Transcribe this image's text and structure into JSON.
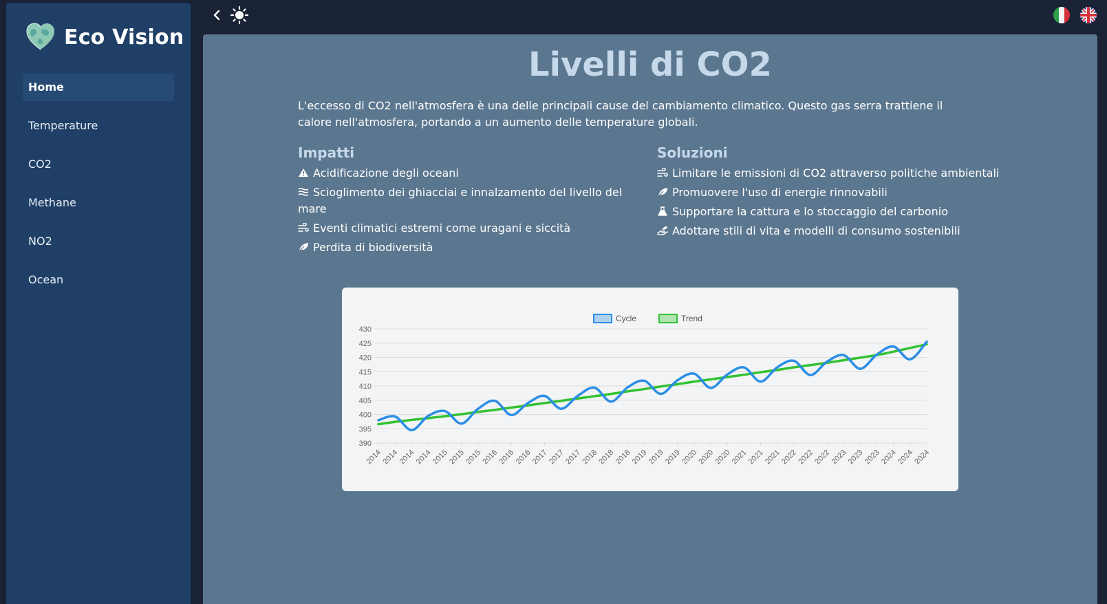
{
  "app": {
    "brand_title": "Eco Vision",
    "logo_icon": "earth-heart-icon"
  },
  "sidebar": {
    "items": [
      {
        "label": "Home",
        "active": true
      },
      {
        "label": "Temperature",
        "active": false
      },
      {
        "label": "CO2",
        "active": false
      },
      {
        "label": "Methane",
        "active": false
      },
      {
        "label": "NO2",
        "active": false
      },
      {
        "label": "Ocean",
        "active": false
      }
    ]
  },
  "topbar": {
    "back_icon": "chevron-left-icon",
    "theme_icon": "sun-icon",
    "languages": [
      "it",
      "en"
    ]
  },
  "main": {
    "title": "Livelli di CO2",
    "intro": "L'eccesso di CO2 nell'atmosfera è una delle principali cause del cambiamento climatico. Questo gas serra trattiene il calore nell'atmosfera, portando a un aumento delle temperature globali.",
    "impacts": {
      "title": "Impatti",
      "items": [
        {
          "icon": "warning-icon",
          "text": "Acidificazione degli oceani"
        },
        {
          "icon": "water-icon",
          "text": "Scioglimento dei ghiacciai e innalzamento del livello del mare"
        },
        {
          "icon": "wind-icon",
          "text": "Eventi climatici estremi come uragani e siccità"
        },
        {
          "icon": "leaf-icon",
          "text": "Perdita di biodiversità"
        }
      ]
    },
    "solutions": {
      "title": "Soluzioni",
      "items": [
        {
          "icon": "wind-icon",
          "text": "Limitare le emissioni di CO2 attraverso politiche ambientali"
        },
        {
          "icon": "leaf-icon",
          "text": "Promuovere l'uso di energie rinnovabili"
        },
        {
          "icon": "flask-icon",
          "text": "Supportare la cattura e lo stoccaggio del carbonio"
        },
        {
          "icon": "hand-leaf-icon",
          "text": "Adottare stili di vita e modelli di consumo sostenibili"
        }
      ]
    }
  },
  "colors": {
    "cycle": "#2b8ee6",
    "trend": "#33c233",
    "main_bg": "#5b778f",
    "sidebar_bg": "#1f3f66"
  },
  "chart_data": {
    "type": "line",
    "title": "",
    "xlabel": "",
    "ylabel": "",
    "ylim": [
      390,
      430
    ],
    "yticks": [
      390,
      395,
      400,
      405,
      410,
      415,
      420,
      425,
      430
    ],
    "x": [
      "2014",
      "2014",
      "2014",
      "2014",
      "2015",
      "2015",
      "2015",
      "2016",
      "2016",
      "2016",
      "2017",
      "2017",
      "2017",
      "2018",
      "2018",
      "2018",
      "2019",
      "2019",
      "2019",
      "2020",
      "2020",
      "2020",
      "2021",
      "2021",
      "2021",
      "2022",
      "2022",
      "2022",
      "2023",
      "2023",
      "2023",
      "2024",
      "2024",
      "2024"
    ],
    "grid": true,
    "legend": "top-center",
    "series": [
      {
        "name": "Cycle",
        "color": "#2b8ee6",
        "values": [
          398.0,
          399.3,
          394.5,
          399.5,
          401.2,
          396.8,
          402.0,
          404.8,
          399.8,
          404.0,
          406.5,
          402.0,
          406.5,
          409.4,
          404.5,
          409.5,
          411.8,
          407.2,
          412.0,
          414.3,
          409.3,
          414.0,
          416.5,
          411.5,
          416.5,
          418.8,
          413.8,
          418.5,
          420.8,
          416.0,
          421.0,
          423.8,
          419.3,
          425.5
        ]
      },
      {
        "name": "Trend",
        "color": "#33c233",
        "values": [
          396.6,
          397.4,
          398.1,
          398.7,
          399.4,
          400.1,
          400.9,
          401.6,
          402.4,
          403.2,
          404.0,
          404.8,
          405.6,
          406.4,
          407.2,
          408.1,
          408.9,
          409.8,
          410.6,
          411.5,
          412.3,
          413.1,
          413.9,
          414.8,
          415.6,
          416.5,
          417.3,
          418.1,
          419.0,
          419.9,
          420.8,
          422.0,
          423.3,
          424.6
        ]
      }
    ]
  }
}
